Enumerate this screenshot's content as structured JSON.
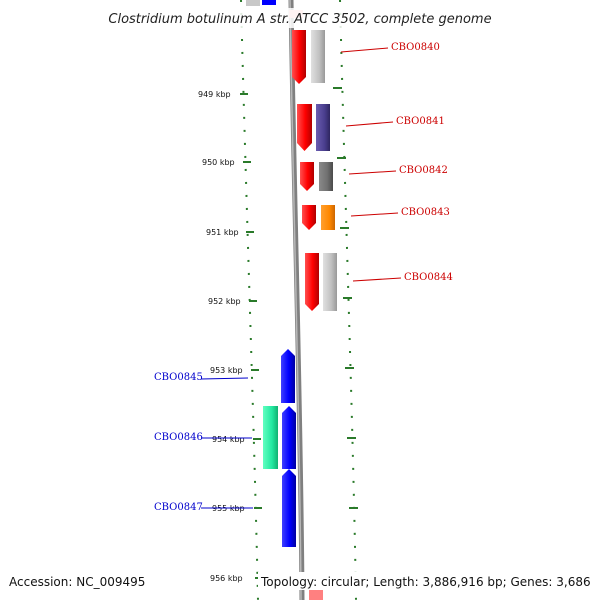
{
  "title": "Clostridium botulinum A str. ATCC 3502, complete genome",
  "footer": {
    "accession": "Accession: NC_009495",
    "topology": "Topology: circular; Length: 3,886,916 bp; Genes: 3,686"
  },
  "ticks": [
    "949 kbp",
    "950 kbp",
    "951 kbp",
    "952 kbp",
    "953 kbp",
    "954 kbp",
    "955 kbp",
    "956 kbp"
  ],
  "genes_right": [
    {
      "label": "CBO0840",
      "color": "#cc0000",
      "ortholog_color": "#bbbbbb"
    },
    {
      "label": "CBO0841",
      "color": "#cc0000",
      "ortholog_color": "#4b3f8f"
    },
    {
      "label": "CBO0842",
      "color": "#cc0000",
      "ortholog_color": "#707070"
    },
    {
      "label": "CBO0843",
      "color": "#cc0000",
      "ortholog_color": "#ff8800"
    },
    {
      "label": "CBO0844",
      "color": "#cc0000",
      "ortholog_color": "#bbbbbb"
    }
  ],
  "genes_left": [
    {
      "label": "CBO0845",
      "color": "#0000cc"
    },
    {
      "label": "CBO0846",
      "color": "#0000cc",
      "ortholog_color": "#22e8a0"
    },
    {
      "label": "CBO0847",
      "color": "#0000cc"
    }
  ],
  "colors": {
    "forward_strand": "#ff0000",
    "reverse_strand": "#0000ff",
    "backbone": "#808080",
    "tick": "#2a7a2a",
    "label_forward": "#cc0000",
    "label_reverse": "#0000cc"
  }
}
